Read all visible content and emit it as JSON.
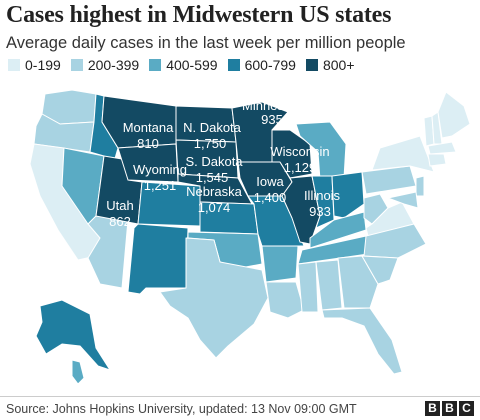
{
  "title": "Cases highest in Midwestern US states",
  "subtitle": "Average daily cases in the last week per million people",
  "legend": [
    {
      "label": "0-199",
      "color": "#dceef4"
    },
    {
      "label": "200-399",
      "color": "#a8d3e2"
    },
    {
      "label": "400-599",
      "color": "#5aabc4"
    },
    {
      "label": "600-799",
      "color": "#1f7ea0"
    },
    {
      "label": "800+",
      "color": "#134a63"
    }
  ],
  "states": [
    {
      "name": "Montana",
      "value": "810"
    },
    {
      "name": "N. Dakota",
      "value": "1,750"
    },
    {
      "name": "Minnesota",
      "value": "935"
    },
    {
      "name": "S. Dakota",
      "value": "1,545"
    },
    {
      "name": "Wisconsin",
      "value": "1,129"
    },
    {
      "name": "Wyoming",
      "value": "1,251"
    },
    {
      "name": "Iowa",
      "value": "1,400"
    },
    {
      "name": "Nebraska",
      "value": "1,074"
    },
    {
      "name": "Illinois",
      "value": "933"
    },
    {
      "name": "Utah",
      "value": "862"
    }
  ],
  "source": "Source: Johns Hopkins University, updated: 13 Nov 09:00 GMT",
  "brand": [
    "B",
    "B",
    "C"
  ]
}
